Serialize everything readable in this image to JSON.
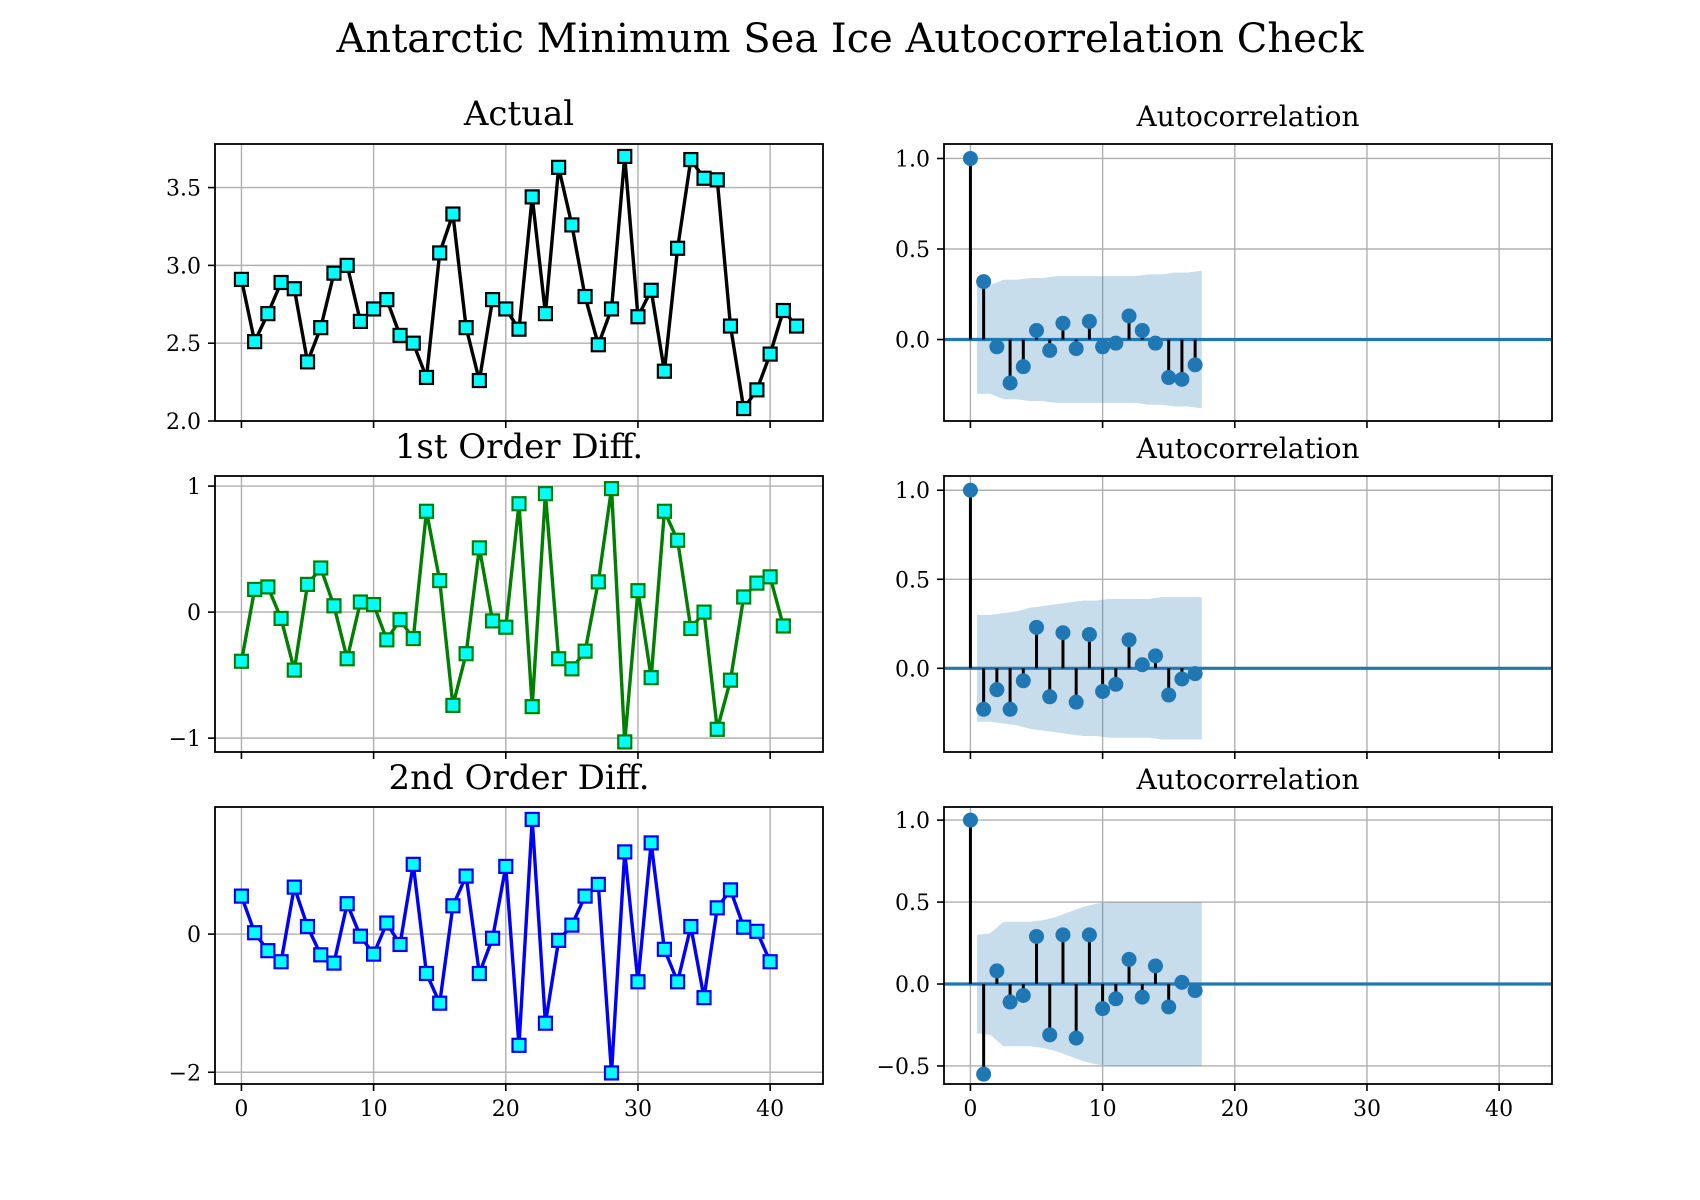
{
  "title": "Antarctic Minimum Sea Ice Autocorrelation Check",
  "colors": {
    "marker_face": "#00ffff",
    "acf": "#1f77b4",
    "confidence_band": "#1f77b4"
  },
  "chart_data": [
    {
      "type": "line",
      "title": "Actual",
      "line_color": "#000000",
      "marker": "square",
      "grid": true,
      "xlim": [
        -2,
        44
      ],
      "ylim": [
        2.0,
        3.78
      ],
      "x_ticks": [
        0,
        10,
        20,
        30,
        40
      ],
      "x_tick_labels": [
        "",
        "",
        "",
        "",
        ""
      ],
      "y_ticks": [
        2.0,
        2.5,
        3.0,
        3.5
      ],
      "y_tick_labels": [
        "2.0",
        "2.5",
        "3.0",
        "3.5"
      ],
      "x": [
        0,
        1,
        2,
        3,
        4,
        5,
        6,
        7,
        8,
        9,
        10,
        11,
        12,
        13,
        14,
        15,
        16,
        17,
        18,
        19,
        20,
        21,
        22,
        23,
        24,
        25,
        26,
        27,
        28,
        29,
        30,
        31,
        32,
        33,
        34,
        35,
        36,
        37,
        38,
        39,
        40,
        41,
        42
      ],
      "values": [
        2.91,
        2.51,
        2.69,
        2.89,
        2.85,
        2.38,
        2.6,
        2.95,
        3.0,
        2.64,
        2.72,
        2.78,
        2.55,
        2.5,
        2.28,
        3.08,
        3.33,
        2.6,
        2.26,
        2.78,
        2.72,
        2.59,
        3.44,
        2.69,
        3.63,
        3.26,
        2.8,
        2.49,
        2.72,
        3.7,
        2.67,
        2.84,
        2.32,
        3.11,
        3.68,
        3.56,
        3.55,
        2.61,
        2.08,
        2.2,
        2.43,
        2.71,
        2.61
      ]
    },
    {
      "type": "line",
      "title": "1st Order Diff.",
      "line_color": "#008000",
      "marker": "square",
      "grid": true,
      "xlim": [
        -2,
        44
      ],
      "ylim": [
        -1.11,
        1.08
      ],
      "x_ticks": [
        0,
        10,
        20,
        30,
        40
      ],
      "x_tick_labels": [
        "",
        "",
        "",
        "",
        ""
      ],
      "y_ticks": [
        -1,
        0,
        1
      ],
      "y_tick_labels": [
        "−1",
        "0",
        "1"
      ],
      "x": [
        0,
        1,
        2,
        3,
        4,
        5,
        6,
        7,
        8,
        9,
        10,
        11,
        12,
        13,
        14,
        15,
        16,
        17,
        18,
        19,
        20,
        21,
        22,
        23,
        24,
        25,
        26,
        27,
        28,
        29,
        30,
        31,
        32,
        33,
        34,
        35,
        36,
        37,
        38,
        39,
        40,
        41
      ],
      "values": [
        -0.39,
        0.18,
        0.2,
        -0.05,
        -0.46,
        0.22,
        0.35,
        0.05,
        -0.37,
        0.08,
        0.06,
        -0.22,
        -0.06,
        -0.21,
        0.8,
        0.25,
        -0.74,
        -0.33,
        0.51,
        -0.07,
        -0.12,
        0.86,
        -0.75,
        0.94,
        -0.37,
        -0.45,
        -0.31,
        0.24,
        0.98,
        -1.03,
        0.17,
        -0.52,
        0.8,
        0.57,
        -0.13,
        0.0,
        -0.93,
        -0.54,
        0.12,
        0.23,
        0.28,
        -0.11
      ]
    },
    {
      "type": "line",
      "title": "2nd Order Diff.",
      "line_color": "#0000ff",
      "marker": "square",
      "grid": true,
      "xlim": [
        -2,
        44
      ],
      "ylim": [
        -2.17,
        1.84
      ],
      "x_ticks": [
        0,
        10,
        20,
        30,
        40
      ],
      "x_tick_labels": [
        "0",
        "10",
        "20",
        "30",
        "40"
      ],
      "y_ticks": [
        -2,
        0
      ],
      "y_tick_labels": [
        "−2",
        "0"
      ],
      "x": [
        0,
        1,
        2,
        3,
        4,
        5,
        6,
        7,
        8,
        9,
        10,
        11,
        12,
        13,
        14,
        15,
        16,
        17,
        18,
        19,
        20,
        21,
        22,
        23,
        24,
        25,
        26,
        27,
        28,
        29,
        30,
        31,
        32,
        33,
        34,
        35,
        36,
        37,
        38,
        39,
        40
      ],
      "values": [
        0.55,
        0.02,
        -0.24,
        -0.4,
        0.68,
        0.11,
        -0.3,
        -0.42,
        0.44,
        -0.03,
        -0.29,
        0.16,
        -0.15,
        1.01,
        -0.57,
        -1.0,
        0.41,
        0.84,
        -0.57,
        -0.06,
        0.98,
        -1.61,
        1.66,
        -1.29,
        -0.09,
        0.13,
        0.55,
        0.72,
        -2.01,
        1.19,
        -0.69,
        1.32,
        -0.22,
        -0.69,
        0.11,
        -0.92,
        0.38,
        0.64,
        0.1,
        0.04,
        -0.4
      ]
    },
    {
      "type": "stem",
      "title": "Autocorrelation",
      "grid": true,
      "xlim": [
        -2,
        44
      ],
      "ylim": [
        -0.45,
        1.08
      ],
      "x_ticks": [
        0,
        10,
        20,
        30,
        40
      ],
      "x_tick_labels": [
        "",
        "",
        "",
        "",
        ""
      ],
      "y_ticks": [
        0.0,
        0.5,
        1.0
      ],
      "y_tick_labels": [
        "0.0",
        "0.5",
        "1.0"
      ],
      "lags": [
        0,
        1,
        2,
        3,
        4,
        5,
        6,
        7,
        8,
        9,
        10,
        11,
        12,
        13,
        14,
        15,
        16,
        17
      ],
      "values": [
        1.0,
        0.32,
        -0.04,
        -0.24,
        -0.15,
        0.05,
        -0.06,
        0.09,
        -0.05,
        0.1,
        -0.04,
        -0.02,
        0.13,
        0.05,
        -0.02,
        -0.21,
        -0.22,
        -0.14
      ],
      "confidence_band": [
        0.3,
        0.3,
        0.33,
        0.33,
        0.34,
        0.34,
        0.35,
        0.35,
        0.35,
        0.35,
        0.35,
        0.35,
        0.35,
        0.36,
        0.36,
        0.37,
        0.37,
        0.38
      ]
    },
    {
      "type": "stem",
      "title": "Autocorrelation",
      "grid": true,
      "xlim": [
        -2,
        44
      ],
      "ylim": [
        -0.47,
        1.08
      ],
      "x_ticks": [
        0,
        10,
        20,
        30,
        40
      ],
      "x_tick_labels": [
        "",
        "",
        "",
        "",
        ""
      ],
      "y_ticks": [
        0.0,
        0.5,
        1.0
      ],
      "y_tick_labels": [
        "0.0",
        "0.5",
        "1.0"
      ],
      "lags": [
        0,
        1,
        2,
        3,
        4,
        5,
        6,
        7,
        8,
        9,
        10,
        11,
        12,
        13,
        14,
        15,
        16,
        17
      ],
      "values": [
        1.0,
        -0.23,
        -0.12,
        -0.23,
        -0.07,
        0.23,
        -0.16,
        0.2,
        -0.19,
        0.19,
        -0.13,
        -0.09,
        0.16,
        0.02,
        0.07,
        -0.15,
        -0.06,
        -0.03
      ],
      "confidence_band": [
        0.3,
        0.3,
        0.31,
        0.32,
        0.34,
        0.35,
        0.36,
        0.37,
        0.38,
        0.38,
        0.39,
        0.39,
        0.39,
        0.39,
        0.4,
        0.4,
        0.4,
        0.4
      ]
    },
    {
      "type": "stem",
      "title": "Autocorrelation",
      "grid": true,
      "xlim": [
        -2,
        44
      ],
      "ylim": [
        -0.61,
        1.08
      ],
      "x_ticks": [
        0,
        10,
        20,
        30,
        40
      ],
      "x_tick_labels": [
        "0",
        "10",
        "20",
        "30",
        "40"
      ],
      "y_ticks": [
        -0.5,
        0.0,
        0.5,
        1.0
      ],
      "y_tick_labels": [
        "−0.5",
        "0.0",
        "0.5",
        "1.0"
      ],
      "lags": [
        0,
        1,
        2,
        3,
        4,
        5,
        6,
        7,
        8,
        9,
        10,
        11,
        12,
        13,
        14,
        15,
        16,
        17
      ],
      "values": [
        1.0,
        -0.55,
        0.08,
        -0.11,
        -0.07,
        0.29,
        -0.31,
        0.3,
        -0.33,
        0.3,
        -0.15,
        -0.09,
        0.15,
        -0.08,
        0.11,
        -0.14,
        0.01,
        -0.04
      ],
      "confidence_band": [
        0.3,
        0.31,
        0.38,
        0.38,
        0.38,
        0.39,
        0.41,
        0.44,
        0.47,
        0.49,
        0.5,
        0.5,
        0.5,
        0.5,
        0.5,
        0.5,
        0.5,
        0.5
      ]
    }
  ]
}
